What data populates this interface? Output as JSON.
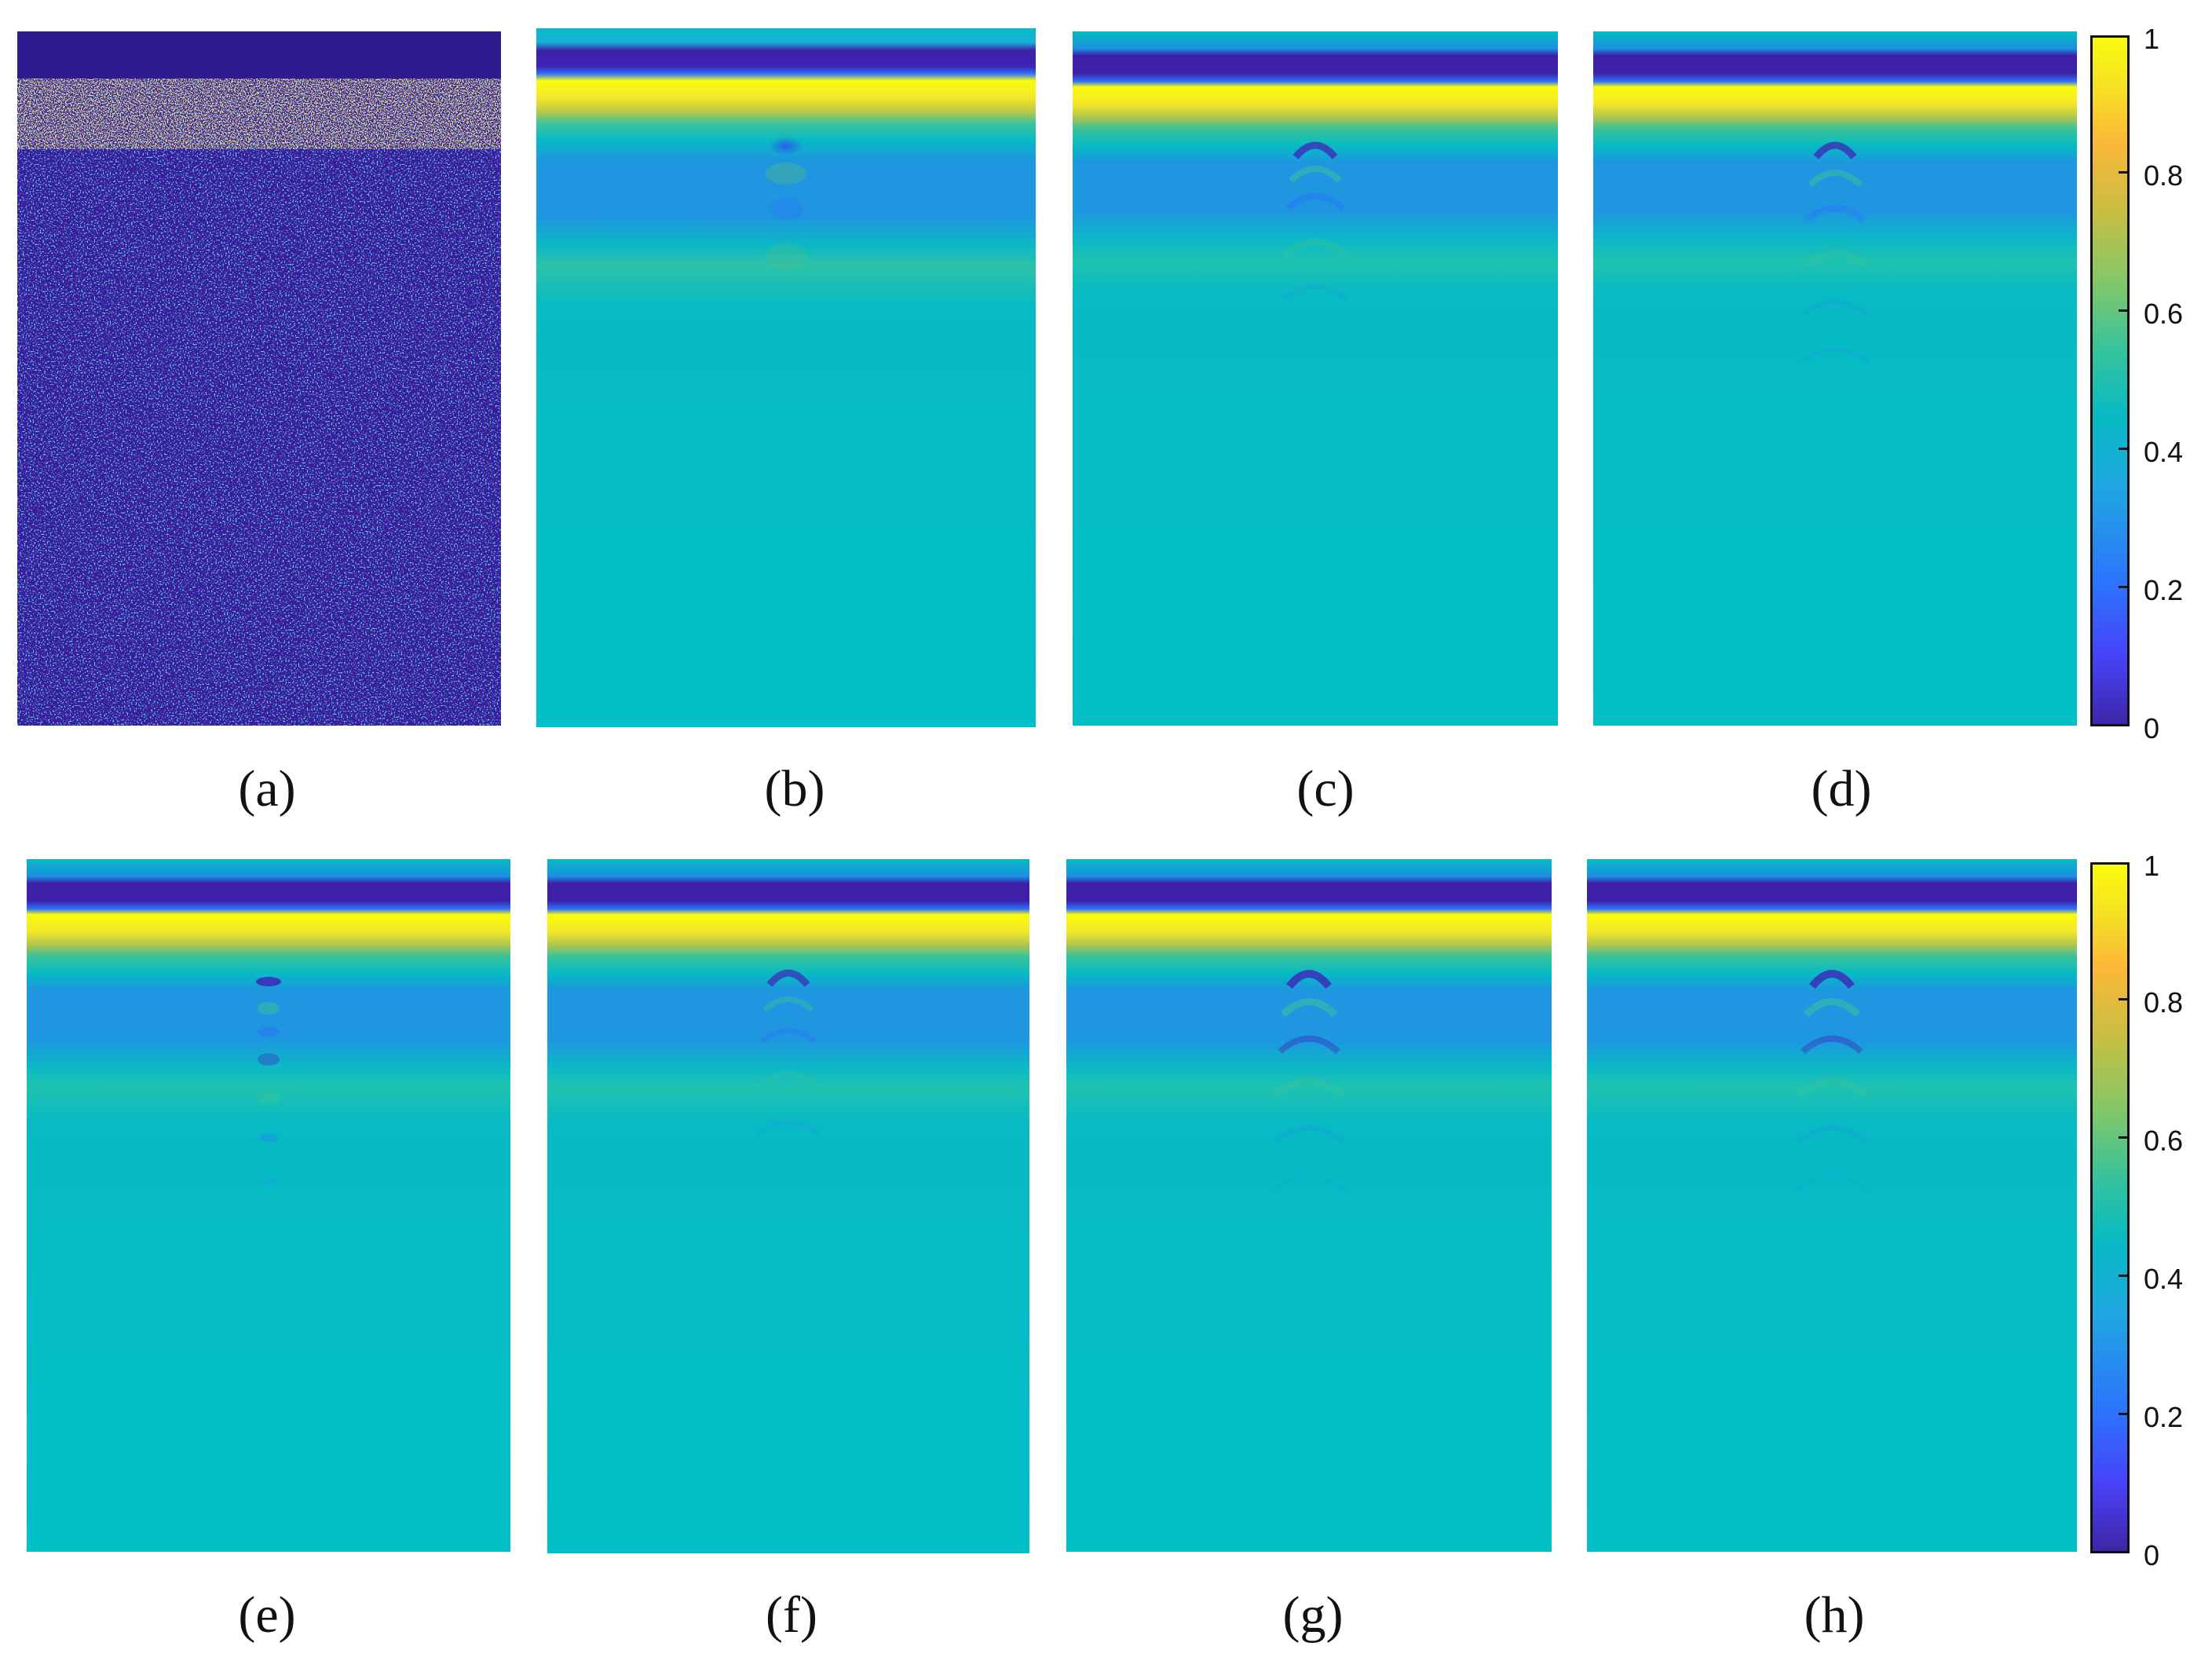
{
  "colorbar": {
    "ticks": [
      "0",
      "0.2",
      "0.4",
      "0.6",
      "0.8",
      "1"
    ]
  },
  "panels": [
    {
      "id": "a",
      "label": "(a)",
      "kind": "noise"
    },
    {
      "id": "b",
      "label": "(b)",
      "kind": "smooth"
    },
    {
      "id": "c",
      "label": "(c)",
      "kind": "smooth"
    },
    {
      "id": "d",
      "label": "(d)",
      "kind": "smooth"
    },
    {
      "id": "e",
      "label": "(e)",
      "kind": "smooth"
    },
    {
      "id": "f",
      "label": "(f)",
      "kind": "smooth"
    },
    {
      "id": "g",
      "label": "(g)",
      "kind": "smooth"
    },
    {
      "id": "h",
      "label": "(h)",
      "kind": "smooth"
    }
  ],
  "colors": {
    "background": "#00bfc7",
    "dark_band": "#3e1fa8",
    "bright_band": "#f9f20e",
    "mid_band": "#1e96e0",
    "noise_bg": "#3b1f9e"
  }
}
